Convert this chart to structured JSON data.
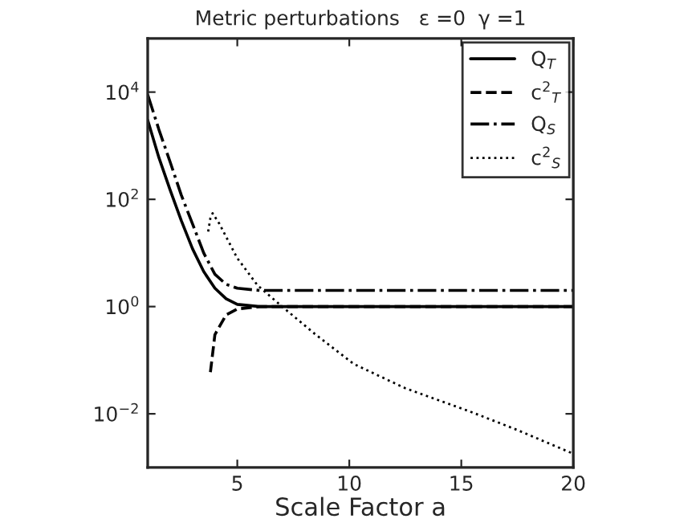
{
  "chart_data": {
    "type": "line",
    "title": "Metric perturbations   ε =0  γ =1",
    "xlabel": "Scale Factor a",
    "log": "y",
    "xlim": [
      1,
      20
    ],
    "ylim": [
      0.001,
      100000
    ],
    "xticks": [
      5,
      10,
      15,
      20
    ],
    "yticks": [
      {
        "value": 0.01,
        "label": "10$^{−2}$"
      },
      {
        "value": 1,
        "label": "10$^{0}$"
      },
      {
        "value": 100,
        "label": "10$^{2}$"
      },
      {
        "value": 10000,
        "label": "10$^{4}$"
      }
    ],
    "legend": "top right",
    "grid": false,
    "series": [
      {
        "name": "Q$_{T}$",
        "color": "#000000",
        "line_style": "solid",
        "x": [
          1,
          1.5,
          2,
          2.5,
          3,
          3.5,
          4,
          4.5,
          5,
          6,
          20
        ],
        "values": [
          3000,
          600,
          150,
          40,
          12,
          4.5,
          2.2,
          1.4,
          1.1,
          1.0,
          1.0
        ]
      },
      {
        "name": "c$^{2}$$_{T}$",
        "color": "#000000",
        "line_style": "dashed",
        "x": [
          3.8,
          4,
          4.5,
          5,
          6,
          20
        ],
        "values": [
          0.06,
          0.3,
          0.7,
          0.9,
          1.0,
          1.0
        ]
      },
      {
        "name": "Q$_{S}$",
        "color": "#000000",
        "line_style": "dashdot",
        "x": [
          1,
          1.5,
          2,
          2.5,
          3,
          3.5,
          4,
          4.5,
          5,
          6,
          20
        ],
        "values": [
          9000,
          2000,
          500,
          120,
          35,
          10,
          4,
          2.6,
          2.2,
          2.0,
          2.0
        ]
      },
      {
        "name": "c$^{2}$$_{S}$",
        "color": "#000000",
        "line_style": "dotted",
        "x": [
          3.7,
          3.8,
          3.9,
          4.2,
          4.5,
          5,
          5.9,
          7,
          8.5,
          10.2,
          12.5,
          15.4,
          17.5,
          20
        ],
        "values": [
          25,
          45,
          55,
          35,
          20,
          8,
          2.5,
          1.0,
          0.3,
          0.085,
          0.03,
          0.011,
          0.005,
          0.0018
        ]
      }
    ]
  }
}
